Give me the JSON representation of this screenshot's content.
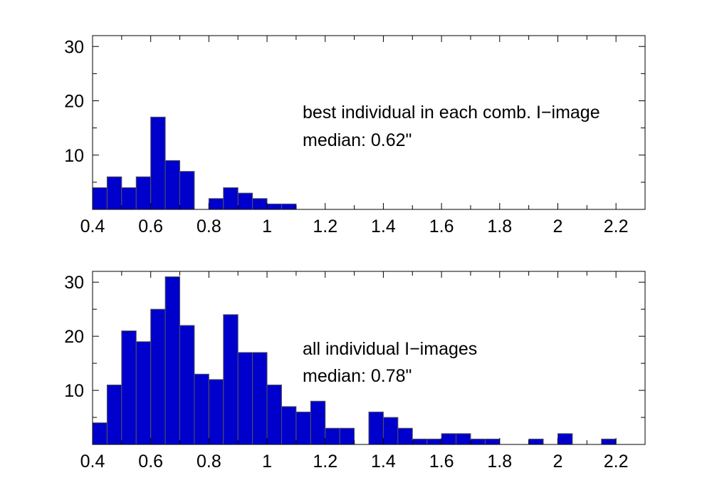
{
  "chart_data": [
    {
      "type": "bar",
      "bin_width": 0.05,
      "xlim": [
        0.4,
        2.3
      ],
      "ylim": [
        0,
        32
      ],
      "xticks": [
        0.4,
        0.6,
        0.8,
        1,
        1.2,
        1.4,
        1.6,
        1.8,
        2,
        2.2
      ],
      "xtick_labels": [
        "0.4",
        "0.6",
        "0.8",
        "1",
        "1.2",
        "1.4",
        "1.6",
        "1.8",
        "2",
        "2.2"
      ],
      "yticks": [
        10,
        20,
        30
      ],
      "ytick_labels": [
        "10",
        "20",
        "30"
      ],
      "annotation_lines": [
        "best individual in each comb. I−image",
        "median: 0.62\""
      ],
      "bins": [
        {
          "x": 0.4,
          "count": 4
        },
        {
          "x": 0.45,
          "count": 6
        },
        {
          "x": 0.5,
          "count": 4
        },
        {
          "x": 0.55,
          "count": 6
        },
        {
          "x": 0.6,
          "count": 17
        },
        {
          "x": 0.65,
          "count": 9
        },
        {
          "x": 0.7,
          "count": 7
        },
        {
          "x": 0.8,
          "count": 2
        },
        {
          "x": 0.85,
          "count": 4
        },
        {
          "x": 0.9,
          "count": 3
        },
        {
          "x": 0.95,
          "count": 2
        },
        {
          "x": 1.0,
          "count": 1
        },
        {
          "x": 1.05,
          "count": 1
        }
      ]
    },
    {
      "type": "bar",
      "bin_width": 0.05,
      "xlim": [
        0.4,
        2.3
      ],
      "ylim": [
        0,
        32
      ],
      "xticks": [
        0.4,
        0.6,
        0.8,
        1,
        1.2,
        1.4,
        1.6,
        1.8,
        2,
        2.2
      ],
      "xtick_labels": [
        "0.4",
        "0.6",
        "0.8",
        "1",
        "1.2",
        "1.4",
        "1.6",
        "1.8",
        "2",
        "2.2"
      ],
      "yticks": [
        10,
        20,
        30
      ],
      "ytick_labels": [
        "10",
        "20",
        "30"
      ],
      "annotation_lines": [
        "all individual I−images",
        "median: 0.78\""
      ],
      "bins": [
        {
          "x": 0.4,
          "count": 4
        },
        {
          "x": 0.45,
          "count": 11
        },
        {
          "x": 0.5,
          "count": 21
        },
        {
          "x": 0.55,
          "count": 19
        },
        {
          "x": 0.6,
          "count": 25
        },
        {
          "x": 0.65,
          "count": 31
        },
        {
          "x": 0.7,
          "count": 22
        },
        {
          "x": 0.75,
          "count": 13
        },
        {
          "x": 0.8,
          "count": 12
        },
        {
          "x": 0.85,
          "count": 24
        },
        {
          "x": 0.9,
          "count": 17
        },
        {
          "x": 0.95,
          "count": 17
        },
        {
          "x": 1.0,
          "count": 11
        },
        {
          "x": 1.05,
          "count": 7
        },
        {
          "x": 1.1,
          "count": 6
        },
        {
          "x": 1.15,
          "count": 8
        },
        {
          "x": 1.2,
          "count": 3
        },
        {
          "x": 1.25,
          "count": 3
        },
        {
          "x": 1.35,
          "count": 6
        },
        {
          "x": 1.4,
          "count": 5
        },
        {
          "x": 1.45,
          "count": 3
        },
        {
          "x": 1.5,
          "count": 1
        },
        {
          "x": 1.55,
          "count": 1
        },
        {
          "x": 1.6,
          "count": 2
        },
        {
          "x": 1.65,
          "count": 2
        },
        {
          "x": 1.7,
          "count": 1
        },
        {
          "x": 1.75,
          "count": 1
        },
        {
          "x": 1.9,
          "count": 1
        },
        {
          "x": 2.0,
          "count": 2
        },
        {
          "x": 2.15,
          "count": 1
        }
      ]
    }
  ]
}
